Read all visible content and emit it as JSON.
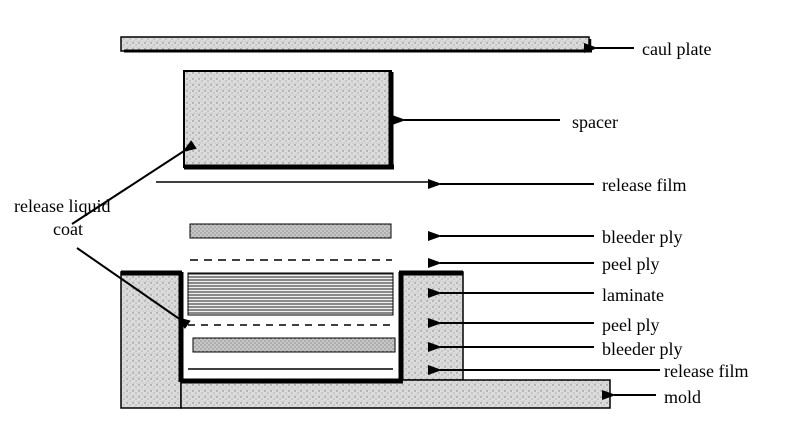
{
  "labels": {
    "caul_plate": "caul plate",
    "spacer": "spacer",
    "release_film_top": "release film",
    "release_liquid_coat_line1": "release liquid",
    "release_liquid_coat_line2": "coat",
    "bleeder_ply_top": "bleeder ply",
    "peel_ply_top": "peel ply",
    "laminate": "laminate",
    "peel_ply_bottom": "peel ply",
    "bleeder_ply_bottom": "bleeder ply",
    "release_film_bottom": "release film",
    "mold": "mold"
  },
  "colors": {
    "stroke": "#000000",
    "fill_gray": "#d9d9d9",
    "fill_dots": "#8a8a8a",
    "background": "#ffffff"
  }
}
